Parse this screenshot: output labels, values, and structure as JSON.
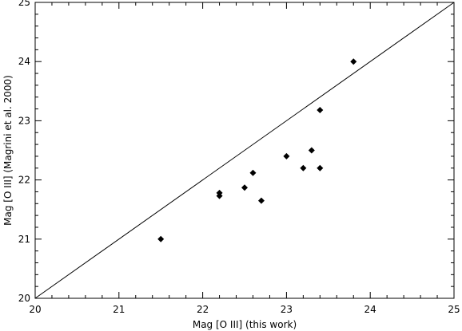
{
  "chart_data": {
    "type": "scatter",
    "title": "",
    "xlabel": "Mag [O III] (this work)",
    "ylabel": "Mag [O III] (Magrini et al. 2000)",
    "xlim": [
      20,
      25
    ],
    "ylim": [
      20,
      25
    ],
    "xticks": [
      20,
      21,
      22,
      23,
      24,
      25
    ],
    "yticks": [
      20,
      21,
      22,
      23,
      24,
      25
    ],
    "grid": false,
    "legend": "none",
    "marker": "diamond",
    "colors": {
      "axes": "#000000",
      "points": "#000000",
      "line": "#000000"
    },
    "reference_line": {
      "type": "one-to-one",
      "from": [
        20,
        20
      ],
      "to": [
        25,
        25
      ]
    },
    "points": [
      {
        "x": 21.5,
        "y": 21.0
      },
      {
        "x": 22.2,
        "y": 21.73
      },
      {
        "x": 22.2,
        "y": 21.78
      },
      {
        "x": 22.5,
        "y": 21.87
      },
      {
        "x": 22.6,
        "y": 22.12
      },
      {
        "x": 22.7,
        "y": 21.65
      },
      {
        "x": 23.0,
        "y": 22.4
      },
      {
        "x": 23.2,
        "y": 22.2
      },
      {
        "x": 23.3,
        "y": 22.5
      },
      {
        "x": 23.4,
        "y": 22.2
      },
      {
        "x": 23.4,
        "y": 23.18
      },
      {
        "x": 23.8,
        "y": 24.0
      }
    ]
  }
}
